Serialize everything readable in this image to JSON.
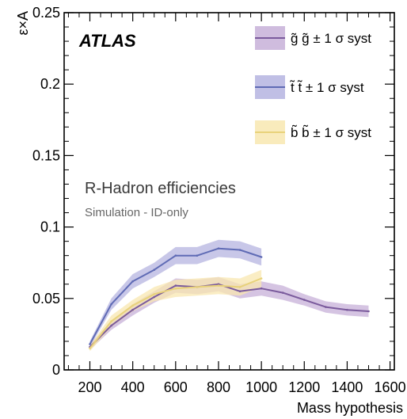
{
  "chart_data": {
    "type": "line",
    "title": "",
    "xlabel": "Mass hypothesis",
    "ylabel": "ε×A",
    "xlim": [
      80,
      1620
    ],
    "ylim": [
      0,
      0.25
    ],
    "x_ticks": [
      200,
      400,
      600,
      800,
      1000,
      1200,
      1400,
      1600
    ],
    "y_ticks": [
      0,
      0.05,
      0.1,
      0.15,
      0.2,
      0.25
    ],
    "x_tick_labels": [
      "200",
      "400",
      "600",
      "800",
      "1000",
      "1200",
      "1400",
      "1600"
    ],
    "y_tick_labels": [
      "0",
      "0.05",
      "0.1",
      "0.15",
      "0.2",
      "0.25"
    ],
    "grid": false,
    "legend_position": "top-right",
    "annotations": {
      "experiment": "ATLAS",
      "heading": "R-Hadron efficiencies",
      "subheading": "Simulation - ID-only"
    },
    "series": [
      {
        "name": "g̃ g̃ ± 1 σ syst",
        "line_color": "#7a5a9c",
        "band_color": "#c7b0d8",
        "x": [
          200,
          300,
          400,
          500,
          600,
          700,
          800,
          900,
          1000,
          1100,
          1200,
          1300,
          1400,
          1500
        ],
        "y": [
          0.016,
          0.031,
          0.042,
          0.051,
          0.059,
          0.058,
          0.06,
          0.055,
          0.057,
          0.054,
          0.049,
          0.044,
          0.042,
          0.041
        ],
        "err": [
          0.002,
          0.003,
          0.004,
          0.004,
          0.005,
          0.005,
          0.005,
          0.005,
          0.005,
          0.005,
          0.004,
          0.004,
          0.004,
          0.004
        ]
      },
      {
        "name": "t̃ t̃ ± 1 σ syst",
        "line_color": "#5f6bb5",
        "band_color": "#b5b4e0",
        "x": [
          200,
          300,
          400,
          500,
          600,
          700,
          800,
          900,
          1000
        ],
        "y": [
          0.018,
          0.046,
          0.062,
          0.07,
          0.08,
          0.08,
          0.085,
          0.084,
          0.079
        ],
        "err": [
          0.002,
          0.004,
          0.005,
          0.005,
          0.006,
          0.006,
          0.006,
          0.006,
          0.006
        ]
      },
      {
        "name": "b̃ b̃ ± 1 σ syst",
        "line_color": "#e8d27a",
        "band_color": "#f8e7b0",
        "x": [
          200,
          300,
          400,
          500,
          600,
          700,
          800,
          900,
          1000
        ],
        "y": [
          0.015,
          0.034,
          0.045,
          0.053,
          0.057,
          0.058,
          0.059,
          0.058,
          0.064
        ],
        "err": [
          0.002,
          0.004,
          0.004,
          0.005,
          0.006,
          0.006,
          0.006,
          0.006,
          0.006
        ]
      }
    ]
  }
}
